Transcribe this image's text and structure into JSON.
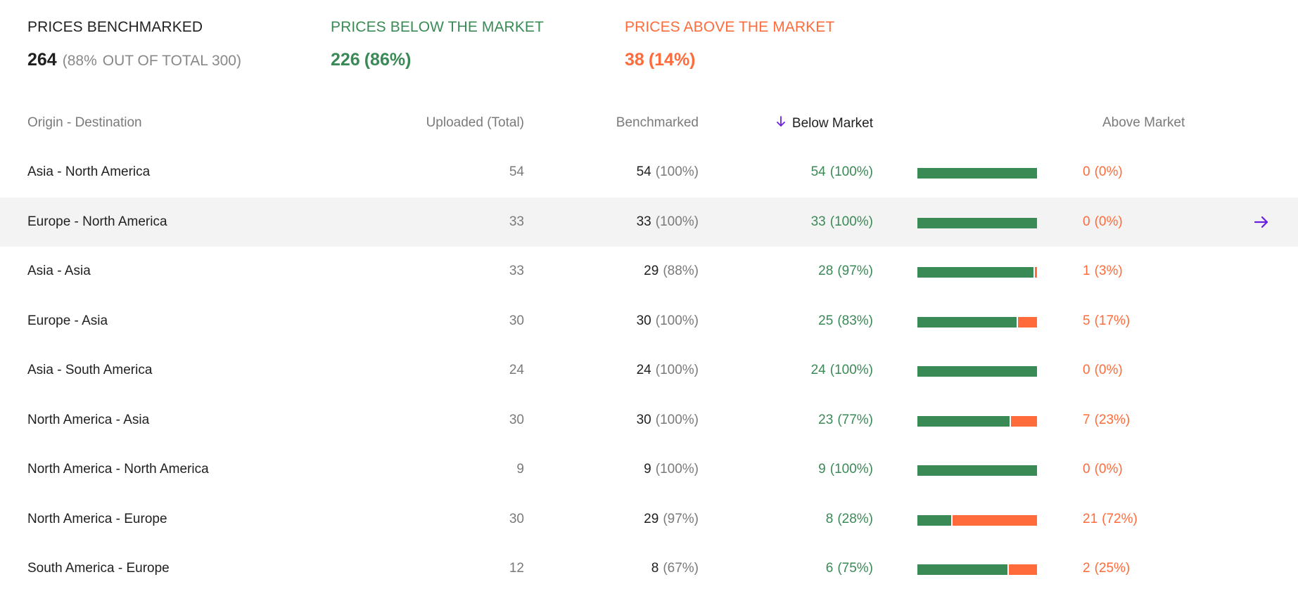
{
  "summary": {
    "benchmarked": {
      "label": "PRICES BENCHMARKED",
      "value": "264",
      "pct": "(88%",
      "out_of": "OUT OF TOTAL 300)"
    },
    "below": {
      "label": "PRICES BELOW THE MARKET",
      "value": "226",
      "pct": "(86%)"
    },
    "above": {
      "label": "PRICES ABOVE THE MARKET",
      "value": "38",
      "pct": "(14%)"
    }
  },
  "columns": {
    "route": "Origin - Destination",
    "uploaded": "Uploaded (Total)",
    "benchmarked": "Benchmarked",
    "below": "Below Market",
    "above": "Above Market"
  },
  "sort": {
    "column": "below",
    "direction": "descending",
    "icon": "arrow-down-icon"
  },
  "colors": {
    "green": "#3a8a56",
    "orange": "#ff6b3a",
    "accent": "#6a1fe0",
    "hover_row": "#f3f3f3"
  },
  "rows": [
    {
      "route": "Asia - North America",
      "uploaded": "54",
      "bench": "54",
      "bench_pct": "(100%)",
      "below": "54",
      "below_pct": "(100%)",
      "above": "0",
      "above_pct": "(0%)",
      "below_share": 1.0
    },
    {
      "route": "Europe - North America",
      "uploaded": "33",
      "bench": "33",
      "bench_pct": "(100%)",
      "below": "33",
      "below_pct": "(100%)",
      "above": "0",
      "above_pct": "(0%)",
      "below_share": 1.0,
      "hover": true
    },
    {
      "route": "Asia - Asia",
      "uploaded": "33",
      "bench": "29",
      "bench_pct": "(88%)",
      "below": "28",
      "below_pct": "(97%)",
      "above": "1",
      "above_pct": "(3%)",
      "below_share": 0.97
    },
    {
      "route": "Europe - Asia",
      "uploaded": "30",
      "bench": "30",
      "bench_pct": "(100%)",
      "below": "25",
      "below_pct": "(83%)",
      "above": "5",
      "above_pct": "(17%)",
      "below_share": 0.83
    },
    {
      "route": "Asia - South America",
      "uploaded": "24",
      "bench": "24",
      "bench_pct": "(100%)",
      "below": "24",
      "below_pct": "(100%)",
      "above": "0",
      "above_pct": "(0%)",
      "below_share": 1.0
    },
    {
      "route": "North America - Asia",
      "uploaded": "30",
      "bench": "30",
      "bench_pct": "(100%)",
      "below": "23",
      "below_pct": "(77%)",
      "above": "7",
      "above_pct": "(23%)",
      "below_share": 0.77
    },
    {
      "route": "North America - North America",
      "uploaded": "9",
      "bench": "9",
      "bench_pct": "(100%)",
      "below": "9",
      "below_pct": "(100%)",
      "above": "0",
      "above_pct": "(0%)",
      "below_share": 1.0
    },
    {
      "route": "North America - Europe",
      "uploaded": "30",
      "bench": "29",
      "bench_pct": "(97%)",
      "below": "8",
      "below_pct": "(28%)",
      "above": "21",
      "above_pct": "(72%)",
      "below_share": 0.28
    },
    {
      "route": "South America - Europe",
      "uploaded": "12",
      "bench": "8",
      "bench_pct": "(67%)",
      "below": "6",
      "below_pct": "(75%)",
      "above": "2",
      "above_pct": "(25%)",
      "below_share": 0.75
    }
  ]
}
